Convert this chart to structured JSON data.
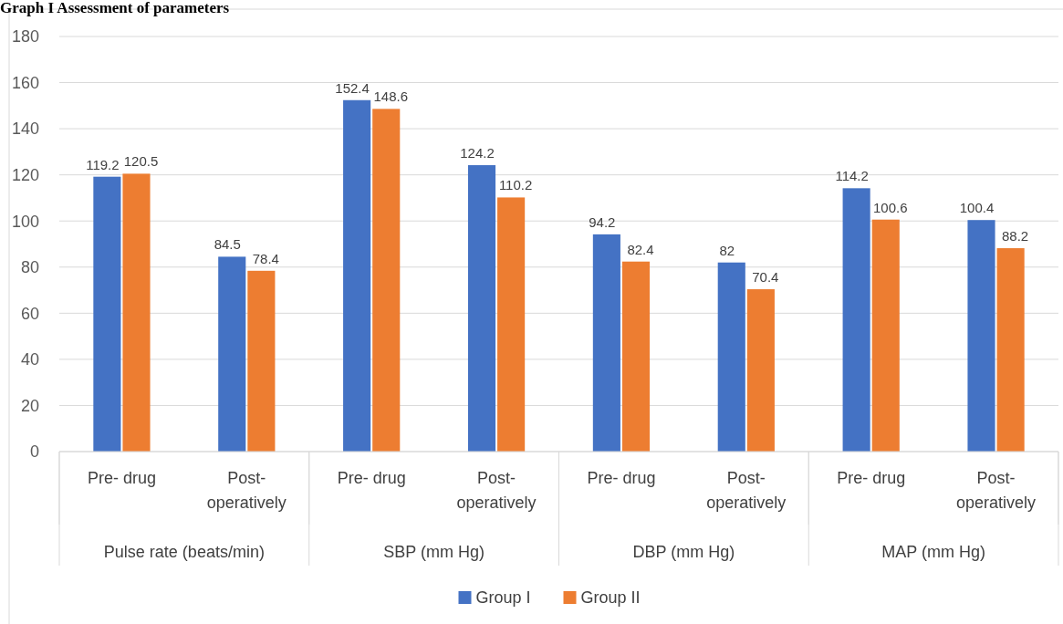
{
  "chart_data": {
    "type": "bar",
    "title": "Graph I Assessment of parameters",
    "categories": [
      "Pre- drug",
      "Post-operatively",
      "Pre- drug",
      "Post-operatively",
      "Pre- drug",
      "Post-operatively",
      "Pre- drug",
      "Post-operatively"
    ],
    "series": [
      {
        "name": "Group I",
        "color": "#4472c4",
        "values": [
          119.2,
          84.5,
          152.4,
          124.2,
          94.2,
          82,
          114.2,
          100.4
        ]
      },
      {
        "name": "Group II",
        "color": "#ed7d31",
        "values": [
          120.5,
          78.4,
          148.6,
          110.2,
          82.4,
          70.4,
          100.6,
          88.2
        ]
      }
    ],
    "annotations": [
      "Pulse rate (beats/min)",
      "SBP (mm Hg)",
      "DBP (mm Hg)",
      "MAP (mm Hg)"
    ],
    "ylim": [
      0,
      180
    ],
    "yticks": [
      0,
      20,
      40,
      60,
      80,
      100,
      120,
      140,
      160,
      180
    ],
    "grid": "y",
    "data_labels": true,
    "legend": "bottom"
  }
}
